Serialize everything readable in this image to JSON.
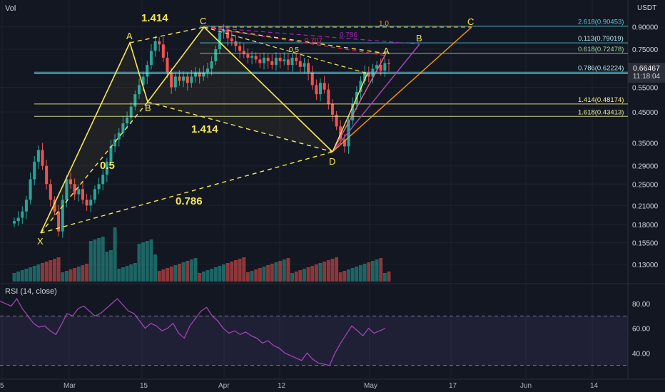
{
  "header": {
    "vol_label": "Vol",
    "currency_line1": "USDT",
    "price_label": "0.66467",
    "countdown": "11:18:04"
  },
  "rsi": {
    "label": "RSI (14, close)",
    "ticks": [
      "80.00",
      "60.00",
      "40.00"
    ],
    "values": [
      82,
      80,
      78,
      84,
      76,
      70,
      64,
      61,
      62,
      58,
      55,
      63,
      72,
      70,
      76,
      78,
      74,
      70,
      72,
      76,
      80,
      84,
      79,
      74,
      72,
      66,
      60,
      64,
      62,
      58,
      60,
      64,
      56,
      52,
      62,
      68,
      74,
      77,
      70,
      66,
      60,
      56,
      58,
      55,
      57,
      54,
      52,
      48,
      50,
      46,
      44,
      40,
      38,
      36,
      34,
      40,
      35,
      32,
      31,
      30,
      40,
      48,
      55,
      62,
      58,
      54,
      60,
      56,
      58,
      60
    ],
    "ylim": [
      20,
      95
    ]
  },
  "chart_data": {
    "type": "candlestick",
    "y_scale": "log",
    "ylim": [
      0.115,
      1.12
    ],
    "y_ticks": [
      "0.90000",
      "0.75000",
      "0.55000",
      "0.45000",
      "0.35000",
      "0.29000",
      "0.25000",
      "0.21000",
      "0.18000",
      "0.15500",
      "0.13000"
    ],
    "x_ticks": [
      "5",
      "Mar",
      "15",
      "Apr",
      "12",
      "May",
      "17",
      "Jun",
      "14"
    ],
    "pattern_points": [
      {
        "name": "X",
        "price": 0.172
      },
      {
        "name": "A",
        "price": 0.82
      },
      {
        "name": "B",
        "price": 0.52
      },
      {
        "name": "C",
        "price": 0.915
      },
      {
        "name": "D",
        "price": 0.335
      },
      {
        "name": "A",
        "price": 0.69
      },
      {
        "name": "B",
        "price": 0.786
      },
      {
        "name": "C",
        "price": 0.905
      }
    ],
    "ratio_labels": [
      "1.414",
      "1.414",
      "0.5",
      "0.786"
    ],
    "fib_labels": [
      {
        "text": "1.0",
        "color": "#ff9800"
      },
      {
        "text": "0.786",
        "color": "#9c27b0"
      },
      {
        "text": "0.707",
        "color": "#e91e63"
      },
      {
        "text": "0.5",
        "color": "#f7e858"
      }
    ],
    "right_labels": [
      {
        "text": "2.618(0.90453)",
        "color": "#4dd0e1"
      },
      {
        "text": "0.113(0.79019)",
        "color": "#b2ebf2"
      },
      {
        "text": "0.618(0.72478)",
        "color": "#a5d6a7"
      },
      {
        "text": "0.786(0.62224)",
        "color": "#b2ebf2"
      },
      {
        "text": "1.414(0.48174)",
        "color": "#fff176"
      },
      {
        "text": "1.618(0.43413)",
        "color": "#e6ee9c"
      }
    ],
    "closes": [
      0.185,
      0.19,
      0.2,
      0.22,
      0.26,
      0.3,
      0.33,
      0.29,
      0.25,
      0.22,
      0.2,
      0.17,
      0.22,
      0.26,
      0.25,
      0.23,
      0.24,
      0.22,
      0.21,
      0.22,
      0.24,
      0.25,
      0.27,
      0.3,
      0.34,
      0.36,
      0.38,
      0.41,
      0.43,
      0.47,
      0.52,
      0.56,
      0.6,
      0.66,
      0.74,
      0.8,
      0.78,
      0.7,
      0.62,
      0.55,
      0.6,
      0.58,
      0.6,
      0.57,
      0.6,
      0.62,
      0.6,
      0.62,
      0.64,
      0.68,
      0.75,
      0.86,
      0.88,
      0.82,
      0.8,
      0.77,
      0.74,
      0.72,
      0.7,
      0.71,
      0.69,
      0.67,
      0.7,
      0.68,
      0.66,
      0.7,
      0.68,
      0.69,
      0.66,
      0.7,
      0.68,
      0.65,
      0.67,
      0.62,
      0.56,
      0.52,
      0.57,
      0.54,
      0.48,
      0.44,
      0.4,
      0.36,
      0.34,
      0.42,
      0.48,
      0.53,
      0.58,
      0.62,
      0.6,
      0.64,
      0.66,
      0.63,
      0.67,
      0.665
    ]
  }
}
